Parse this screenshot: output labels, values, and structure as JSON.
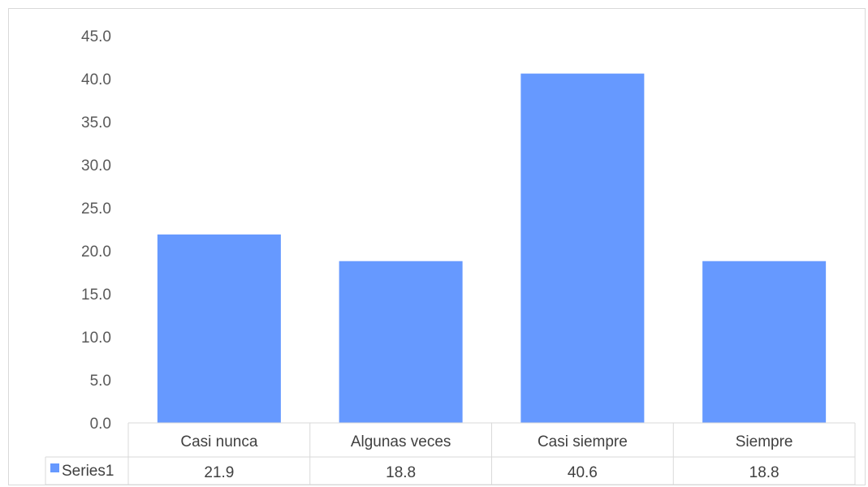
{
  "chart_data": {
    "type": "bar",
    "categories": [
      "Casi nunca",
      "Algunas veces",
      "Casi siempre",
      "Siempre"
    ],
    "series": [
      {
        "name": "Series1",
        "values": [
          21.9,
          18.8,
          40.6,
          18.8
        ],
        "color": "#6699ff"
      }
    ],
    "value_labels": [
      "21.9",
      "18.8",
      "40.6",
      "18.8"
    ],
    "ylim": [
      0,
      45
    ],
    "yticks": [
      "0.0",
      "5.0",
      "10.0",
      "15.0",
      "20.0",
      "25.0",
      "30.0",
      "35.0",
      "40.0",
      "45.0"
    ],
    "grid": false,
    "legend": "data-table",
    "title": "",
    "xlabel": "",
    "ylabel": ""
  }
}
